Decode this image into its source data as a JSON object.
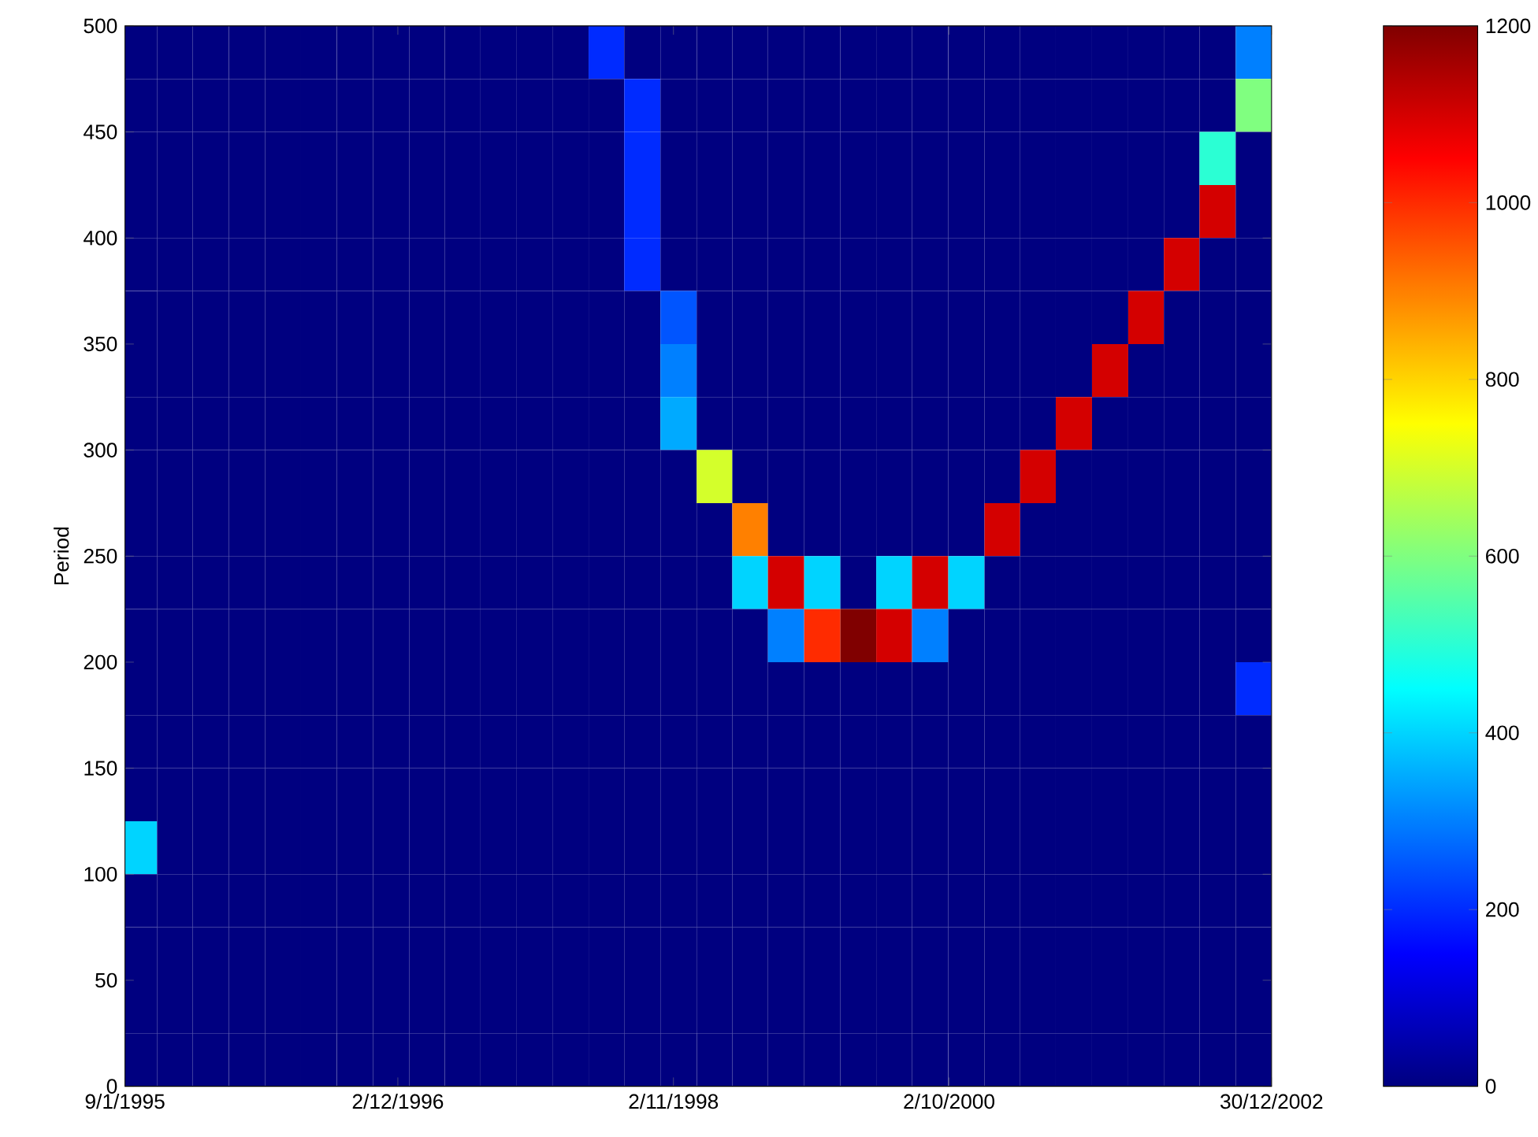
{
  "chart_data": {
    "type": "heatmap",
    "ylabel": "Period",
    "x": [
      "1995-02",
      "1995-05",
      "1995-08",
      "1995-11",
      "1996-02",
      "1996-05",
      "1996-08",
      "1996-11",
      "1997-02",
      "1997-05",
      "1997-08",
      "1997-11",
      "1998-02",
      "1998-05",
      "1998-08",
      "1998-11",
      "1999-02",
      "1999-05",
      "1999-08",
      "1999-11",
      "2000-02",
      "2000-05",
      "2000-08",
      "2000-11",
      "2001-02",
      "2001-05",
      "2001-08",
      "2001-11",
      "2002-02",
      "2002-05",
      "2002-08",
      "2002-11"
    ],
    "y": [
      487.5,
      462.5,
      437.5,
      412.5,
      387.5,
      362.5,
      337.5,
      312.5,
      287.5,
      262.5,
      237.5,
      212.5,
      187.5,
      162.5,
      137.5,
      112.5,
      87.5,
      62.5,
      37.5,
      12.5
    ],
    "xlim": [
      "1995-01-09",
      "2002-12-30"
    ],
    "xticks": [
      {
        "value": "1995-01-09",
        "label": "9/1/1995"
      },
      {
        "value": "1996-12-02",
        "label": "2/12/1996"
      },
      {
        "value": "1998-11-02",
        "label": "2/11/1998"
      },
      {
        "value": "2000-10-02",
        "label": "2/10/2000"
      },
      {
        "value": "2002-12-30",
        "label": "30/12/2002"
      }
    ],
    "ylim": [
      0,
      500
    ],
    "yticks": [
      0,
      50,
      100,
      150,
      200,
      250,
      300,
      350,
      400,
      450,
      500
    ],
    "clim": [
      0,
      1200
    ],
    "cticks": [
      0,
      200,
      400,
      600,
      800,
      1000,
      1200
    ],
    "cells": [
      [
        0,
        0,
        0,
        0,
        0,
        0,
        0,
        0,
        0,
        0,
        0,
        0,
        0,
        200,
        0,
        0,
        0,
        0,
        0,
        0,
        0,
        0,
        0,
        0,
        0,
        0,
        0,
        0,
        0,
        0,
        0,
        300
      ],
      [
        0,
        0,
        0,
        0,
        0,
        0,
        0,
        0,
        0,
        0,
        0,
        0,
        0,
        0,
        200,
        0,
        0,
        0,
        0,
        0,
        0,
        0,
        0,
        0,
        0,
        0,
        0,
        0,
        0,
        0,
        0,
        600
      ],
      [
        0,
        0,
        0,
        0,
        0,
        0,
        0,
        0,
        0,
        0,
        0,
        0,
        0,
        0,
        200,
        0,
        0,
        0,
        0,
        0,
        0,
        0,
        0,
        0,
        0,
        0,
        0,
        0,
        0,
        0,
        500,
        0
      ],
      [
        0,
        0,
        0,
        0,
        0,
        0,
        0,
        0,
        0,
        0,
        0,
        0,
        0,
        0,
        200,
        0,
        0,
        0,
        0,
        0,
        0,
        0,
        0,
        0,
        0,
        0,
        0,
        0,
        0,
        0,
        1100,
        0
      ],
      [
        0,
        0,
        0,
        0,
        0,
        0,
        0,
        0,
        0,
        0,
        0,
        0,
        0,
        0,
        200,
        0,
        0,
        0,
        0,
        0,
        0,
        0,
        0,
        0,
        0,
        0,
        0,
        0,
        0,
        1100,
        0,
        0
      ],
      [
        0,
        0,
        0,
        0,
        0,
        0,
        0,
        0,
        0,
        0,
        0,
        0,
        0,
        0,
        0,
        250,
        0,
        0,
        0,
        0,
        0,
        0,
        0,
        0,
        0,
        0,
        0,
        0,
        1100,
        0,
        0,
        0
      ],
      [
        0,
        0,
        0,
        0,
        0,
        0,
        0,
        0,
        0,
        0,
        0,
        0,
        0,
        0,
        0,
        300,
        0,
        0,
        0,
        0,
        0,
        0,
        0,
        0,
        0,
        0,
        0,
        1100,
        0,
        0,
        0,
        0
      ],
      [
        0,
        0,
        0,
        0,
        0,
        0,
        0,
        0,
        0,
        0,
        0,
        0,
        0,
        0,
        0,
        350,
        0,
        0,
        0,
        0,
        0,
        0,
        0,
        0,
        0,
        0,
        1100,
        0,
        0,
        0,
        0,
        0
      ],
      [
        0,
        0,
        0,
        0,
        0,
        0,
        0,
        0,
        0,
        0,
        0,
        0,
        0,
        0,
        0,
        0,
        700,
        0,
        0,
        0,
        0,
        0,
        0,
        0,
        0,
        1100,
        0,
        0,
        0,
        0,
        0,
        0
      ],
      [
        0,
        0,
        0,
        0,
        0,
        0,
        0,
        0,
        0,
        0,
        0,
        0,
        0,
        0,
        0,
        0,
        0,
        900,
        0,
        0,
        0,
        0,
        0,
        0,
        1100,
        0,
        0,
        0,
        0,
        0,
        0,
        0
      ],
      [
        0,
        0,
        0,
        0,
        0,
        0,
        0,
        0,
        0,
        0,
        0,
        0,
        0,
        0,
        0,
        0,
        0,
        400,
        1100,
        400,
        0,
        400,
        1100,
        400,
        0,
        0,
        0,
        0,
        0,
        0,
        0,
        0
      ],
      [
        0,
        0,
        0,
        0,
        0,
        0,
        0,
        0,
        0,
        0,
        0,
        0,
        0,
        0,
        0,
        0,
        0,
        0,
        300,
        1000,
        1200,
        1100,
        300,
        0,
        0,
        0,
        0,
        0,
        0,
        0,
        0,
        0
      ],
      [
        0,
        0,
        0,
        0,
        0,
        0,
        0,
        0,
        0,
        0,
        0,
        0,
        0,
        0,
        0,
        0,
        0,
        0,
        0,
        0,
        0,
        0,
        0,
        0,
        0,
        0,
        0,
        0,
        0,
        0,
        0,
        200
      ],
      [
        0,
        0,
        0,
        0,
        0,
        0,
        0,
        0,
        0,
        0,
        0,
        0,
        0,
        0,
        0,
        0,
        0,
        0,
        0,
        0,
        0,
        0,
        0,
        0,
        0,
        0,
        0,
        0,
        0,
        0,
        0,
        0
      ],
      [
        0,
        0,
        0,
        0,
        0,
        0,
        0,
        0,
        0,
        0,
        0,
        0,
        0,
        0,
        0,
        0,
        0,
        0,
        0,
        0,
        0,
        0,
        0,
        0,
        0,
        0,
        0,
        0,
        0,
        0,
        0,
        0
      ],
      [
        400,
        0,
        0,
        0,
        0,
        0,
        0,
        0,
        0,
        0,
        0,
        0,
        0,
        0,
        0,
        0,
        0,
        0,
        0,
        0,
        0,
        0,
        0,
        0,
        0,
        0,
        0,
        0,
        0,
        0,
        0,
        0
      ],
      [
        0,
        0,
        0,
        0,
        0,
        0,
        0,
        0,
        0,
        0,
        0,
        0,
        0,
        0,
        0,
        0,
        0,
        0,
        0,
        0,
        0,
        0,
        0,
        0,
        0,
        0,
        0,
        0,
        0,
        0,
        0,
        0
      ],
      [
        0,
        0,
        0,
        0,
        0,
        0,
        0,
        0,
        0,
        0,
        0,
        0,
        0,
        0,
        0,
        0,
        0,
        0,
        0,
        0,
        0,
        0,
        0,
        0,
        0,
        0,
        0,
        0,
        0,
        0,
        0,
        0
      ],
      [
        0,
        0,
        0,
        0,
        0,
        0,
        0,
        0,
        0,
        0,
        0,
        0,
        0,
        0,
        0,
        0,
        0,
        0,
        0,
        0,
        0,
        0,
        0,
        0,
        0,
        0,
        0,
        0,
        0,
        0,
        0,
        0
      ],
      [
        0,
        0,
        0,
        0,
        0,
        0,
        0,
        0,
        0,
        0,
        0,
        0,
        0,
        0,
        0,
        0,
        0,
        0,
        0,
        0,
        0,
        0,
        0,
        0,
        0,
        0,
        0,
        0,
        0,
        0,
        0,
        0
      ]
    ]
  }
}
